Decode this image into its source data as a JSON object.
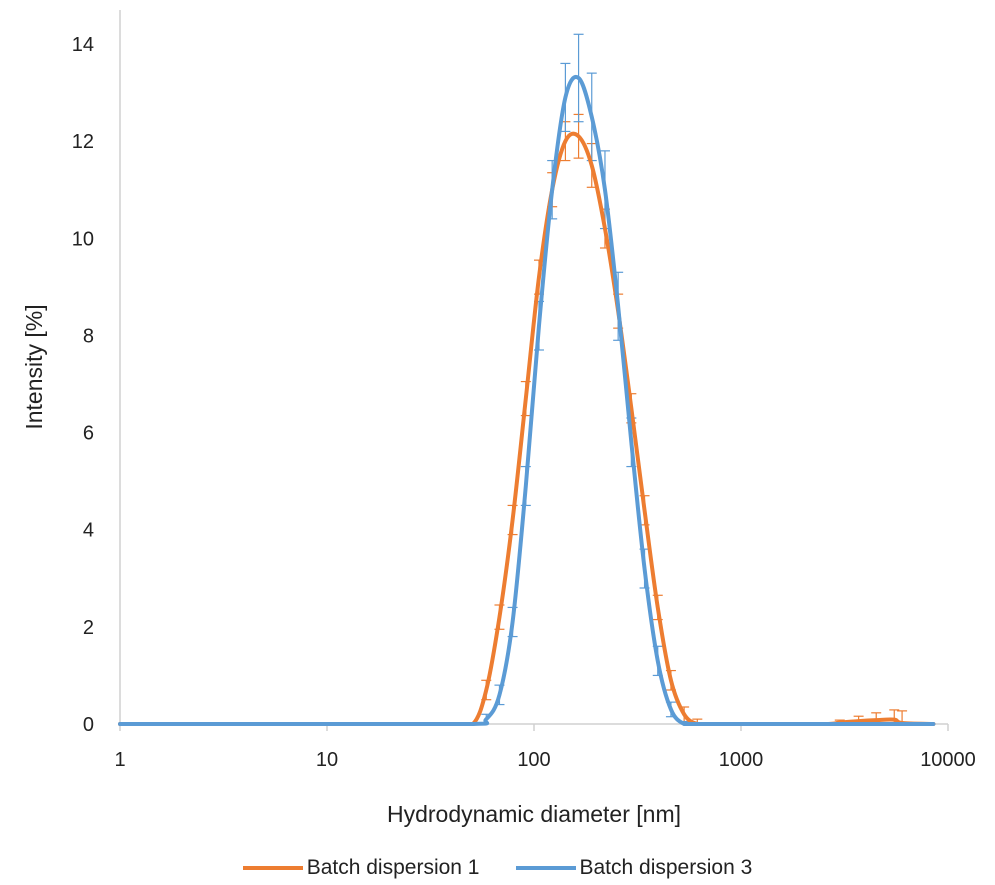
{
  "chart_data": {
    "type": "line",
    "xlabel": "Hydrodynamic diameter [nm]",
    "ylabel": "Intensity [%]",
    "x_scale": "log",
    "xlim": [
      1,
      10000
    ],
    "ylim": [
      0,
      14.7
    ],
    "x_ticks": [
      "1",
      "10",
      "100",
      "1000",
      "10000"
    ],
    "x_tick_values": [
      1,
      10,
      100,
      1000,
      10000
    ],
    "y_ticks": [
      "0",
      "2",
      "4",
      "6",
      "8",
      "10",
      "12",
      "14"
    ],
    "y_tick_values": [
      0,
      2,
      4,
      6,
      8,
      10,
      12,
      14
    ],
    "grid": false,
    "legend_position": "bottom",
    "error_bars": true,
    "series": [
      {
        "name": "Batch dispersion 1",
        "color": "#ED7D31",
        "x": [
          1,
          10,
          40,
          50.7,
          58.8,
          68.1,
          78.8,
          91.3,
          105.7,
          122.4,
          141.8,
          164.2,
          190.1,
          220.2,
          255.0,
          295.3,
          342.0,
          396.1,
          458.7,
          531.2,
          615.1,
          712.4,
          1000,
          2500,
          3000,
          3700,
          4500,
          5500,
          6000,
          8500
        ],
        "y": [
          0,
          0,
          0,
          0,
          0.7,
          2.2,
          4.2,
          6.7,
          9.2,
          11.0,
          12.0,
          12.1,
          11.5,
          10.2,
          8.5,
          6.5,
          4.4,
          2.4,
          0.9,
          0.2,
          0.0,
          0.0,
          0,
          0,
          0.03,
          0.06,
          0.08,
          0.09,
          0.02,
          0
        ],
        "err": [
          0,
          0,
          0,
          0,
          0.2,
          0.25,
          0.3,
          0.35,
          0.35,
          0.35,
          0.4,
          0.45,
          0.45,
          0.4,
          0.35,
          0.3,
          0.3,
          0.25,
          0.2,
          0.15,
          0.1,
          0,
          0,
          0,
          0.05,
          0.1,
          0.15,
          0.2,
          0.25,
          0
        ]
      },
      {
        "name": "Batch dispersion 3",
        "color": "#5B9BD5",
        "x": [
          1,
          10,
          50,
          58.8,
          68.1,
          78.8,
          91.3,
          105.7,
          122.4,
          141.8,
          164.2,
          190.1,
          220.2,
          255.0,
          295.3,
          342.0,
          396.1,
          458.7,
          531.2,
          615.1,
          712.4,
          1000,
          8500
        ],
        "y": [
          0,
          0,
          0,
          0.1,
          0.6,
          2.1,
          4.9,
          8.2,
          11.0,
          12.9,
          13.3,
          12.5,
          11.0,
          8.6,
          5.8,
          3.2,
          1.3,
          0.3,
          0.0,
          0,
          0,
          0,
          0
        ],
        "err": [
          0,
          0,
          0,
          0.1,
          0.2,
          0.3,
          0.4,
          0.5,
          0.6,
          0.7,
          0.9,
          0.9,
          0.8,
          0.7,
          0.5,
          0.4,
          0.3,
          0.15,
          0.05,
          0,
          0,
          0,
          0
        ]
      }
    ]
  }
}
